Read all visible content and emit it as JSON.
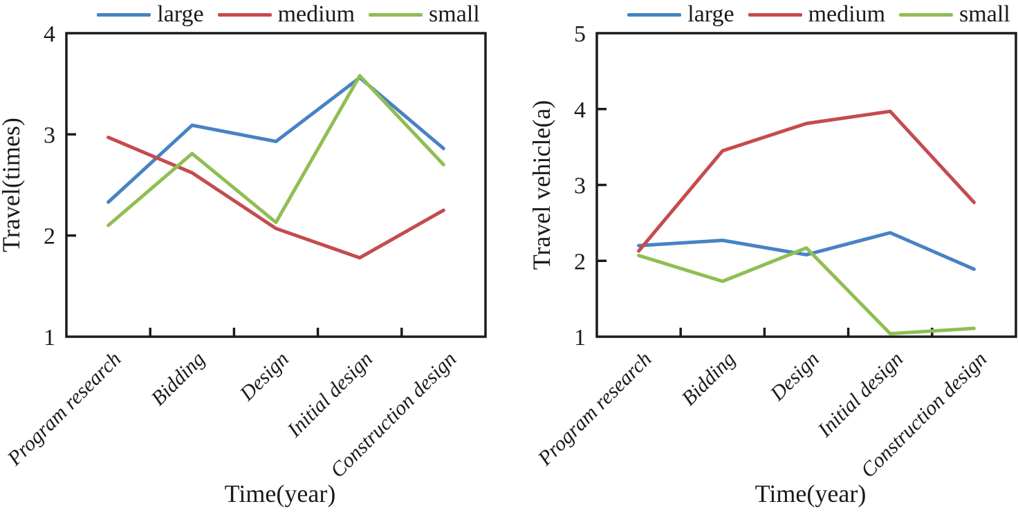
{
  "figure": {
    "background": "#ffffff",
    "text_color": "#1a1a1a",
    "axis_color": "#1b1b1b"
  },
  "chart_data": [
    {
      "type": "line",
      "title": "",
      "xlabel": "Time(year)",
      "ylabel": "Travel(times)",
      "categories": [
        "Program research",
        "Bidding",
        "Design",
        "Initial design",
        "Construction design"
      ],
      "series": [
        {
          "name": "large",
          "color": "#4783C4",
          "values": [
            2.33,
            3.09,
            2.93,
            3.56,
            2.86
          ]
        },
        {
          "name": "medium",
          "color": "#C54B4D",
          "values": [
            2.97,
            2.62,
            2.07,
            1.78,
            2.25
          ]
        },
        {
          "name": "small",
          "color": "#8FBE52",
          "values": [
            2.1,
            2.81,
            2.13,
            3.58,
            2.7
          ]
        }
      ],
      "ylim": [
        1,
        4
      ],
      "yticks": [
        1,
        2,
        3,
        4
      ],
      "legend_position": "top",
      "grid": false
    },
    {
      "type": "line",
      "title": "",
      "xlabel": "Time(year)",
      "ylabel": "Travel vehicle(a)",
      "categories": [
        "Program research",
        "Bidding",
        "Design",
        "Initial design",
        "Construction design"
      ],
      "series": [
        {
          "name": "large",
          "color": "#4783C4",
          "values": [
            2.2,
            2.27,
            2.08,
            2.37,
            1.89
          ]
        },
        {
          "name": "medium",
          "color": "#C54B4D",
          "values": [
            2.13,
            3.45,
            3.81,
            3.97,
            2.77
          ]
        },
        {
          "name": "small",
          "color": "#8FBE52",
          "values": [
            2.07,
            1.73,
            2.17,
            1.04,
            1.11
          ]
        }
      ],
      "ylim": [
        1,
        5
      ],
      "yticks": [
        1,
        2,
        3,
        4,
        5
      ],
      "legend_position": "top",
      "grid": false
    }
  ]
}
